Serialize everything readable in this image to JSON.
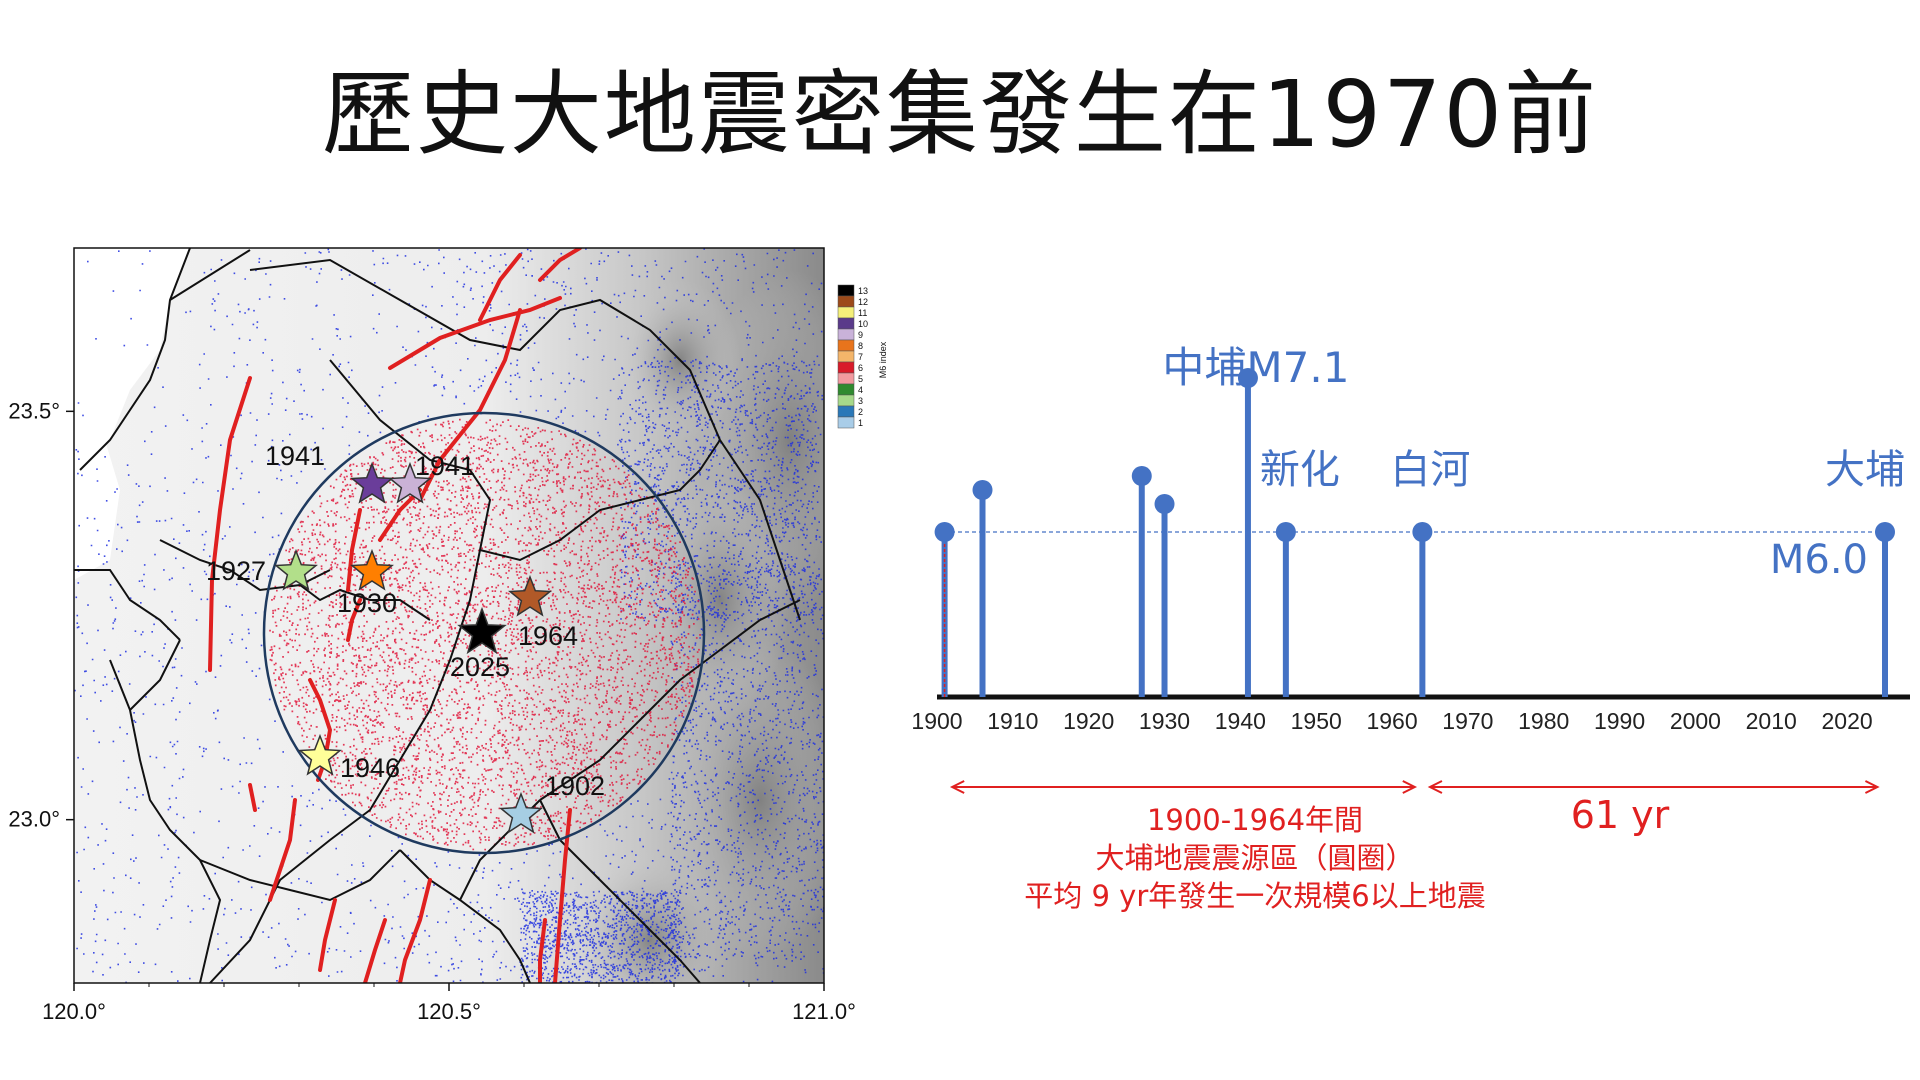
{
  "slide": {
    "title": "歷史大地震密集發生在1970前"
  },
  "map": {
    "lat_ticks": [
      {
        "value": 23.5,
        "label": "23.5°"
      },
      {
        "value": 23.0,
        "label": "23.0°"
      }
    ],
    "lon_ticks": [
      {
        "value": 120.0,
        "label": "120.0°"
      },
      {
        "value": 120.5,
        "label": "120.5°"
      },
      {
        "value": 121.0,
        "label": "121.0°"
      }
    ],
    "colorbar": {
      "title": "M6 index",
      "levels": [
        {
          "label": "13",
          "color": "#000000"
        },
        {
          "label": "12",
          "color": "#9c4a1a"
        },
        {
          "label": "11",
          "color": "#f5f07a"
        },
        {
          "label": "10",
          "color": "#5a3a8a"
        },
        {
          "label": "9",
          "color": "#c9b2d9"
        },
        {
          "label": "8",
          "color": "#e8741c"
        },
        {
          "label": "7",
          "color": "#f4b56a"
        },
        {
          "label": "6",
          "color": "#d81b2a"
        },
        {
          "label": "5",
          "color": "#f29aa0"
        },
        {
          "label": "4",
          "color": "#2f8a2f"
        },
        {
          "label": "3",
          "color": "#a6d98a"
        },
        {
          "label": "2",
          "color": "#2a78b8"
        },
        {
          "label": "1",
          "color": "#a9cde8"
        }
      ]
    },
    "events": [
      {
        "year": "1941",
        "color": "#6a3d9a",
        "label_side": "left"
      },
      {
        "year": "1941",
        "color": "#cab2d6",
        "label_side": "right"
      },
      {
        "year": "1927",
        "color": "#b2df8a",
        "label_side": "left"
      },
      {
        "year": "1930",
        "color": "#ff7f00",
        "label_side": "below"
      },
      {
        "year": "2025",
        "color": "#000000",
        "label_side": "below"
      },
      {
        "year": "1964",
        "color": "#b15928",
        "label_side": "right"
      },
      {
        "year": "1946",
        "color": "#ffff99",
        "label_side": "right"
      },
      {
        "year": "1902",
        "color": "#a6cee3",
        "label_side": "right"
      }
    ],
    "colors": {
      "seismicity_blue": "#1f2fe0",
      "seismicity_red": "#e0183c",
      "faults": "#e02020",
      "circle": "#1f3a5f"
    }
  },
  "timeline": {
    "x_ticks": [
      "1900",
      "1910",
      "1920",
      "1930",
      "1940",
      "1950",
      "1960",
      "1970",
      "1980",
      "1990",
      "2000",
      "2010",
      "2020"
    ],
    "xlim": [
      1900,
      2025
    ],
    "reference_magnitude": "M6.0",
    "events": [
      {
        "year": 1901,
        "magnitude": 6.0
      },
      {
        "year": 1906,
        "magnitude": 6.3
      },
      {
        "year": 1927,
        "magnitude": 6.4
      },
      {
        "year": 1930,
        "magnitude": 6.2
      },
      {
        "year": 1941,
        "magnitude": 7.1
      },
      {
        "year": 1946,
        "magnitude": 6.0
      },
      {
        "year": 1964,
        "magnitude": 6.0
      },
      {
        "year": 2025,
        "magnitude": 6.0
      }
    ],
    "labels": {
      "zhongpu": "中埔M7.1",
      "xinhua": "新化",
      "baihe": "白河",
      "dapu": "大埔",
      "m60": "M6.0"
    },
    "annotations": {
      "period_line1": "1900-1964年間",
      "period_line2": "大埔地震震源區（圓圈）",
      "period_line3": "平均 9 yr年發生一次規模6以上地震",
      "gap": "61 yr"
    },
    "colors": {
      "stem": "#4472c4",
      "annotation": "#e02020"
    }
  }
}
